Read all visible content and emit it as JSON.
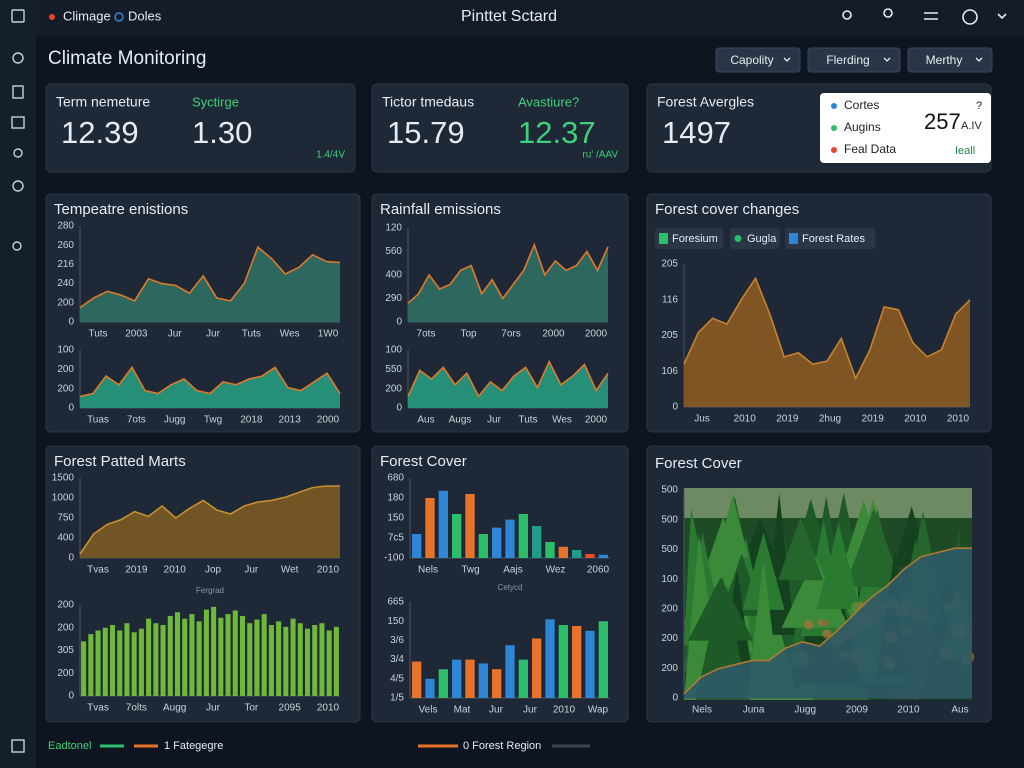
{
  "topbar": {
    "tabs": [
      "Climage",
      "Doles"
    ],
    "title": "Pinttet Sctard"
  },
  "header": {
    "title": "Climate Monitoring",
    "dropdowns": [
      "Capolity",
      "Flerding",
      "Merthy"
    ]
  },
  "kpis": [
    {
      "label": "Term nemeture",
      "value": "12.39",
      "label2": "Syctirge",
      "value2": "1.30",
      "note": "1.4/4V"
    },
    {
      "label": "Tictor tmedaus",
      "value": "15.79",
      "label2": "Avastiure?",
      "value2": "12.37",
      "note": "ru' /AAV"
    },
    {
      "label": "Forest Avergles",
      "value": "1497",
      "popup": {
        "items": [
          "Cortes",
          "Augins",
          "Feal Data"
        ],
        "value": "257",
        "unit": "A.IV",
        "mark": "?",
        "link": "Ieall"
      }
    }
  ],
  "panels": [
    {
      "title": "Tempeatre enistions"
    },
    {
      "title": "Rainfall emissions"
    },
    {
      "title": "Forest cover changes",
      "legend": [
        "Foresium",
        "Gugla",
        "Forest Rates"
      ]
    },
    {
      "title": "Forest Patted Marts"
    },
    {
      "title": "Forest Cover"
    },
    {
      "title": "Forest Cover"
    }
  ],
  "chart_data": [
    {
      "type": "area",
      "color": "#e07a2a",
      "fill": "#2f6f63",
      "ylim": [
        0,
        100
      ],
      "ylabels": [
        "280",
        "260",
        "216",
        "240",
        "200",
        "0"
      ],
      "xlabels": [
        "Tuts",
        "2003",
        "Jur",
        "Jur",
        "Tuts",
        "Wes",
        "1W0"
      ],
      "values": [
        15,
        25,
        32,
        28,
        22,
        45,
        40,
        38,
        30,
        48,
        25,
        22,
        40,
        78,
        66,
        50,
        57,
        70,
        63,
        62
      ]
    },
    {
      "type": "area",
      "color": "#e07a2a",
      "fill": "#269a80",
      "ylim": [
        0,
        100
      ],
      "ylabels": [
        "100",
        "200",
        "200",
        "0"
      ],
      "xlabels": [
        "Tuas",
        "7ots",
        "Jugg",
        "Twg",
        "2018",
        "2013",
        "2000"
      ],
      "values": [
        20,
        25,
        55,
        40,
        70,
        30,
        25,
        40,
        50,
        30,
        25,
        45,
        40,
        50,
        55,
        70,
        35,
        30,
        45,
        60,
        25
      ]
    },
    {
      "type": "area",
      "color": "#e07a2a",
      "fill": "#2f6f63",
      "ylim": [
        0,
        100
      ],
      "ylabels": [
        "120",
        "560",
        "400",
        "290",
        "0"
      ],
      "xlabels": [
        "7ots",
        "Top",
        "7ors",
        "2000",
        "2000"
      ],
      "values": [
        20,
        30,
        50,
        35,
        40,
        55,
        60,
        30,
        45,
        25,
        40,
        55,
        82,
        50,
        65,
        55,
        60,
        75,
        55,
        80
      ]
    },
    {
      "type": "area",
      "color": "#e07a2a",
      "fill": "#269a80",
      "ylim": [
        0,
        100
      ],
      "ylabels": [
        "100",
        "550",
        "200",
        "0"
      ],
      "xlabels": [
        "Aus",
        "Augs",
        "Jur",
        "Tuts",
        "Wes",
        "2000"
      ],
      "values": [
        20,
        65,
        50,
        70,
        40,
        60,
        20,
        45,
        30,
        55,
        70,
        35,
        80,
        40,
        55,
        75,
        30,
        60
      ]
    },
    {
      "type": "area",
      "color": "#c9822e",
      "fill": "#8a5a22",
      "ylim": [
        0,
        100
      ],
      "ylabels": [
        "205",
        "116",
        "205",
        "106",
        "0"
      ],
      "xlabels": [
        "Jus",
        "2010",
        "2019",
        "2hug",
        "2019",
        "2010",
        "2010"
      ],
      "values": [
        30,
        52,
        62,
        58,
        75,
        90,
        65,
        35,
        38,
        30,
        32,
        48,
        20,
        40,
        70,
        68,
        45,
        35,
        40,
        65,
        75
      ]
    },
    {
      "type": "area",
      "color": "#c8902e",
      "fill": "#7a5a24",
      "ylim": [
        0,
        100
      ],
      "ylabels": [
        "1500",
        "1000",
        "750",
        "400",
        "0"
      ],
      "xlabels": [
        "Tvas",
        "2019",
        "2010",
        "Jop",
        "Jur",
        "Wet",
        "2010"
      ],
      "values": [
        5,
        30,
        42,
        48,
        58,
        52,
        65,
        50,
        62,
        72,
        60,
        55,
        65,
        70,
        72,
        76,
        82,
        88,
        90,
        90
      ]
    },
    {
      "type": "bar",
      "caption": "Fergrad",
      "color": "#6fb83a",
      "ylim": [
        0,
        100
      ],
      "ylabels": [
        "200",
        "200",
        "305",
        "200",
        "0"
      ],
      "xlabels": [
        "Tvas",
        "7olts",
        "Augg",
        "Jur",
        "Tor",
        "2095",
        "2010"
      ],
      "values": [
        60,
        68,
        72,
        75,
        78,
        72,
        80,
        70,
        74,
        85,
        80,
        78,
        88,
        92,
        85,
        90,
        82,
        95,
        98,
        86,
        90,
        94,
        88,
        80,
        84,
        90,
        78,
        82,
        76,
        85,
        80,
        74,
        78,
        80,
        72,
        76
      ]
    },
    {
      "type": "bar",
      "ylim": [
        0,
        100
      ],
      "ylabels": [
        "680",
        "180",
        "150",
        "7c5",
        "-100"
      ],
      "xlabels": [
        "Nels",
        "Twg",
        "Aajs",
        "Wez",
        "2060"
      ],
      "values": [
        30,
        75,
        84,
        55,
        80,
        30,
        38,
        48,
        55,
        40,
        20,
        14,
        10,
        5,
        4
      ],
      "colors": [
        "#2f86d6",
        "#e8732a",
        "#2f86d6",
        "#2bbf6a",
        "#e8732a",
        "#2bbf6a",
        "#2f86d6",
        "#2f86d6",
        "#2bbf6a",
        "#1f9c8a",
        "#2bbf6a",
        "#e8732a",
        "#1f9c8a",
        "#e84a2a",
        "#2f86d6"
      ]
    },
    {
      "type": "bar",
      "caption": "Cetycd",
      "ylim": [
        0,
        100
      ],
      "ylabels": [
        "665",
        "150",
        "3/6",
        "3/4",
        "4/5",
        "1/5"
      ],
      "xlabels": [
        "Vels",
        "Mat",
        "Jur",
        "Jur",
        "2010",
        "Wap"
      ],
      "values": [
        38,
        20,
        30,
        40,
        40,
        36,
        30,
        55,
        40,
        62,
        82,
        76,
        75,
        70,
        80
      ],
      "colors": [
        "#e8732a",
        "#2f86d6",
        "#2bbf6a",
        "#2f86d6",
        "#e8732a",
        "#2f86d6",
        "#e8732a",
        "#2f86d6",
        "#2bbf6a",
        "#e8732a",
        "#2f86d6",
        "#2bbf6a",
        "#e8732a",
        "#2f86d6",
        "#2bbf6a"
      ]
    },
    {
      "type": "area",
      "color": "#b07a30",
      "fill": "#2f5a66",
      "ylim": [
        0,
        100
      ],
      "ylabels": [
        "500",
        "500",
        "500",
        "100",
        "200",
        "200",
        "200",
        "0"
      ],
      "xlabels": [
        "Nels",
        "Juna",
        "Jugg",
        "2009",
        "2010",
        "Aus"
      ],
      "values": [
        2,
        10,
        14,
        16,
        18,
        18,
        24,
        27,
        25,
        32,
        40,
        48,
        54,
        62,
        68,
        70,
        72,
        72
      ]
    }
  ],
  "footer": {
    "legend": [
      "Eadtonel",
      "1 Fategegre",
      "0 Forest Region"
    ]
  }
}
